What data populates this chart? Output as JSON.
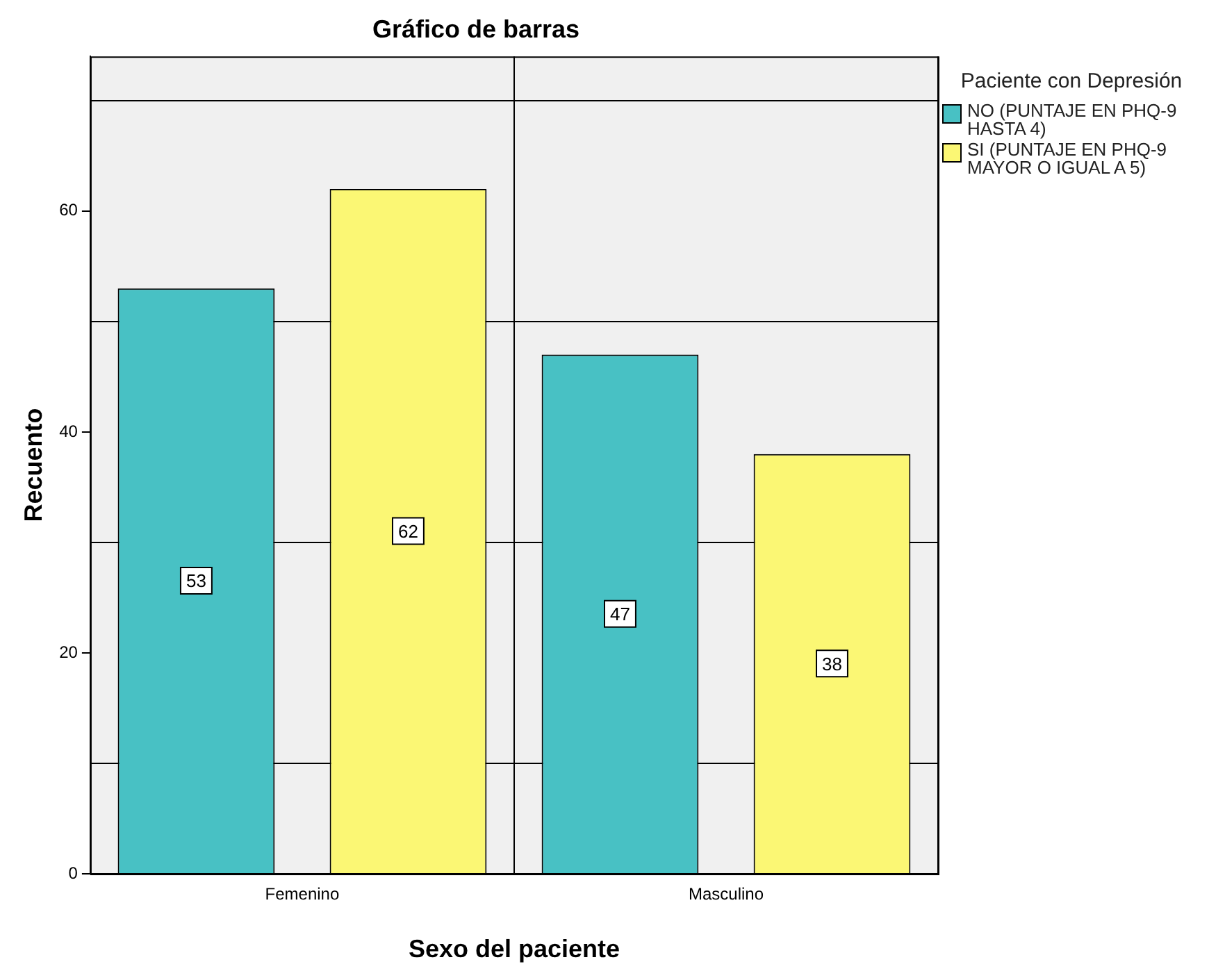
{
  "chart_data": {
    "type": "bar",
    "title": "Gráfico de barras",
    "xlabel": "Sexo del paciente",
    "ylabel": "Recuento",
    "legend_title": "Paciente con Depresión",
    "categories": [
      "Femenino",
      "Masculino"
    ],
    "series": [
      {
        "name": "NO (PUNTAJE EN PHQ-9 HASTA 4)",
        "color": "#48c1c4",
        "values": [
          53,
          47
        ]
      },
      {
        "name": "SI (PUNTAJE EN PHQ-9 MAYOR O IGUAL A 5)",
        "color": "#fbf774",
        "values": [
          62,
          38
        ]
      }
    ],
    "ylim": [
      0,
      74
    ],
    "yticks": [
      0,
      {
        "value": 10,
        "label": null
      },
      20,
      {
        "value": 30,
        "label": null
      },
      40,
      {
        "value": 50,
        "label": null
      },
      60,
      {
        "value": 70,
        "label": null
      }
    ],
    "grid": true,
    "legend": "right",
    "data_labels": true
  }
}
